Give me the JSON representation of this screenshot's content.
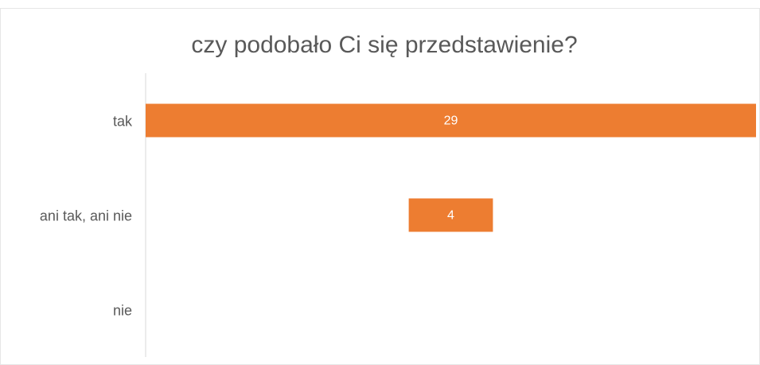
{
  "chart_data": {
    "type": "funnel",
    "title": "czy podobało Ci się przedstawienie?",
    "categories": [
      "tak",
      "ani tak, ani nie",
      "nie"
    ],
    "values": [
      29,
      4,
      null
    ],
    "color": "#ed7d31"
  }
}
